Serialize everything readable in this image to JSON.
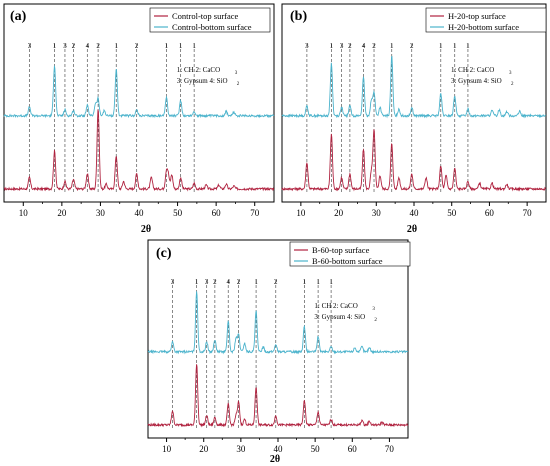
{
  "figure": {
    "colors": {
      "top": "#b0223f",
      "bottom": "#4bb3cc",
      "reference_line": "#555555",
      "frame": "#000000"
    },
    "x_range": [
      5,
      75
    ],
    "x_ticks": [
      10,
      20,
      30,
      40,
      50,
      60,
      70
    ],
    "phase_legend": {
      "line1": "1: CH  2: CaCO",
      "line1_sub": "3",
      "line2": "3: Gypsum 4: SiO",
      "line2_sub": "2"
    },
    "reference_peaks": [
      {
        "x": 11.6,
        "label": "3"
      },
      {
        "x": 18.1,
        "label": "1"
      },
      {
        "x": 20.8,
        "label": "3"
      },
      {
        "x": 23.0,
        "label": "2"
      },
      {
        "x": 26.6,
        "label": "4"
      },
      {
        "x": 29.4,
        "label": "2"
      },
      {
        "x": 34.1,
        "label": "1"
      },
      {
        "x": 39.4,
        "label": "2"
      },
      {
        "x": 47.1,
        "label": "1"
      },
      {
        "x": 50.8,
        "label": "1"
      },
      {
        "x": 54.3,
        "label": "1"
      }
    ]
  },
  "chart_data": [
    {
      "type": "line",
      "panel": "(a)",
      "xlabel": "2θ",
      "xlim": [
        5,
        75
      ],
      "series": [
        {
          "name": "Control-top surface",
          "color": "#b0223f",
          "peaks": [
            [
              11.6,
              12
            ],
            [
              18.1,
              40
            ],
            [
              20.8,
              8
            ],
            [
              23.0,
              10
            ],
            [
              26.6,
              16
            ],
            [
              29.4,
              85
            ],
            [
              31.5,
              5
            ],
            [
              34.1,
              35
            ],
            [
              36.0,
              8
            ],
            [
              39.4,
              16
            ],
            [
              43.2,
              12
            ],
            [
              47.1,
              18
            ],
            [
              47.6,
              14
            ],
            [
              48.5,
              15
            ],
            [
              50.8,
              12
            ],
            [
              54.3,
              6
            ],
            [
              57.4,
              4
            ],
            [
              60.7,
              4
            ],
            [
              62.6,
              5
            ],
            [
              64.6,
              3
            ]
          ]
        },
        {
          "name": "Control-bottom surface",
          "color": "#4bb3cc",
          "peaks": [
            [
              11.6,
              10
            ],
            [
              18.1,
              60
            ],
            [
              20.8,
              7
            ],
            [
              23.0,
              6
            ],
            [
              26.6,
              12
            ],
            [
              28.7,
              14
            ],
            [
              29.4,
              20
            ],
            [
              31.0,
              6
            ],
            [
              34.1,
              55
            ],
            [
              39.4,
              7
            ],
            [
              47.1,
              22
            ],
            [
              50.8,
              18
            ],
            [
              54.3,
              5
            ],
            [
              62.6,
              5
            ],
            [
              64.6,
              4
            ]
          ]
        }
      ]
    },
    {
      "type": "line",
      "panel": "(b)",
      "xlabel": "2θ",
      "xlim": [
        5,
        75
      ],
      "series": [
        {
          "name": "H-20-top surface",
          "color": "#b0223f",
          "peaks": [
            [
              11.6,
              28
            ],
            [
              18.1,
              58
            ],
            [
              20.8,
              12
            ],
            [
              23.0,
              16
            ],
            [
              26.6,
              42
            ],
            [
              28.7,
              18
            ],
            [
              29.4,
              62
            ],
            [
              31.0,
              14
            ],
            [
              34.1,
              48
            ],
            [
              36.0,
              12
            ],
            [
              39.4,
              16
            ],
            [
              43.2,
              12
            ],
            [
              47.1,
              24
            ],
            [
              48.5,
              14
            ],
            [
              50.8,
              22
            ],
            [
              54.3,
              8
            ],
            [
              57.4,
              6
            ],
            [
              60.7,
              6
            ],
            [
              64.6,
              5
            ]
          ]
        },
        {
          "name": "H-20-bottom surface",
          "color": "#4bb3cc",
          "peaks": [
            [
              11.6,
              12
            ],
            [
              18.1,
              62
            ],
            [
              20.8,
              10
            ],
            [
              23.0,
              12
            ],
            [
              26.6,
              45
            ],
            [
              28.7,
              18
            ],
            [
              29.4,
              28
            ],
            [
              31.0,
              10
            ],
            [
              34.1,
              70
            ],
            [
              36.0,
              8
            ],
            [
              39.4,
              10
            ],
            [
              47.1,
              26
            ],
            [
              50.8,
              24
            ],
            [
              54.3,
              8
            ],
            [
              60.7,
              6
            ],
            [
              62.6,
              7
            ],
            [
              64.6,
              5
            ],
            [
              68.0,
              5
            ]
          ]
        }
      ]
    },
    {
      "type": "line",
      "panel": "(c)",
      "xlabel": "2θ",
      "xlim": [
        5,
        75
      ],
      "series": [
        {
          "name": "B-60-top surface",
          "color": "#b0223f",
          "peaks": [
            [
              11.6,
              15
            ],
            [
              18.1,
              65
            ],
            [
              20.8,
              10
            ],
            [
              23.0,
              8
            ],
            [
              26.6,
              22
            ],
            [
              28.7,
              10
            ],
            [
              29.4,
              24
            ],
            [
              31.0,
              6
            ],
            [
              34.1,
              40
            ],
            [
              39.4,
              10
            ],
            [
              47.1,
              26
            ],
            [
              50.8,
              14
            ],
            [
              54.3,
              6
            ],
            [
              62.6,
              5
            ],
            [
              64.6,
              4
            ],
            [
              68.0,
              3
            ]
          ]
        },
        {
          "name": "B-60-bottom surface",
          "color": "#4bb3cc",
          "peaks": [
            [
              11.6,
              12
            ],
            [
              18.1,
              72
            ],
            [
              20.8,
              12
            ],
            [
              23.0,
              14
            ],
            [
              26.6,
              36
            ],
            [
              28.7,
              16
            ],
            [
              29.4,
              20
            ],
            [
              31.0,
              10
            ],
            [
              34.1,
              48
            ],
            [
              36.0,
              6
            ],
            [
              39.4,
              9
            ],
            [
              47.1,
              30
            ],
            [
              50.8,
              18
            ],
            [
              54.3,
              6
            ],
            [
              60.7,
              5
            ],
            [
              62.6,
              6
            ],
            [
              64.6,
              5
            ]
          ]
        }
      ]
    }
  ]
}
